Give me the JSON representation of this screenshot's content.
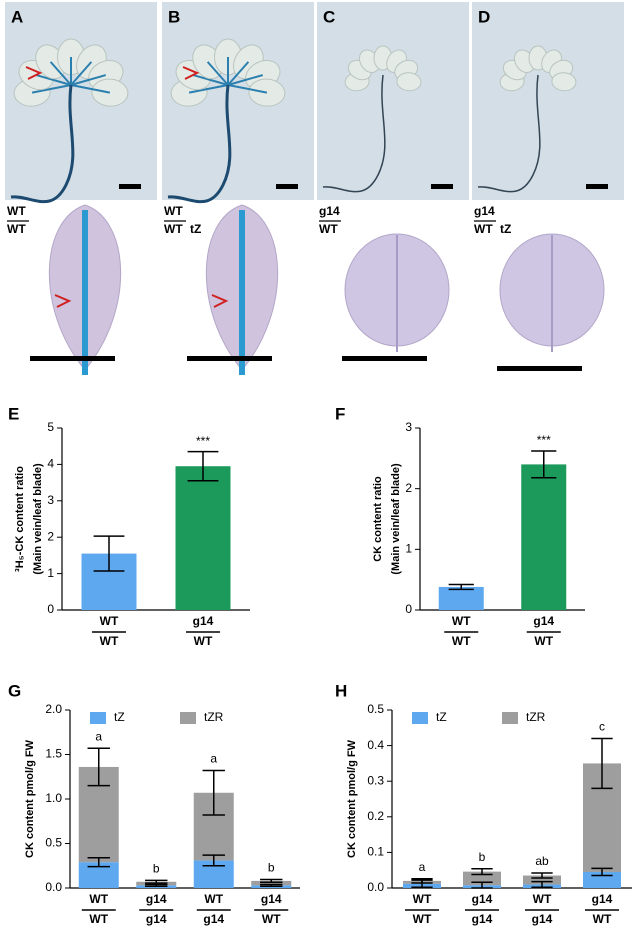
{
  "photo_panels": [
    {
      "label": "A",
      "graft": [
        "WT",
        "WT"
      ]
    },
    {
      "label": "B",
      "graft": [
        "WT",
        "WT"
      ],
      "treatment": "tZ"
    },
    {
      "label": "C",
      "graft": [
        "g14",
        "WT"
      ]
    },
    {
      "label": "D",
      "graft": [
        "g14",
        "WT"
      ],
      "treatment": "tZ"
    }
  ],
  "chart_data": [
    {
      "type": "bar",
      "panel_label": "E",
      "ylabel": [
        "³H₅-CK content ratio",
        "(Main vein/leaf blade)"
      ],
      "categories": [
        [
          "WT",
          "WT"
        ],
        [
          "g14",
          "WT"
        ]
      ],
      "values": [
        1.55,
        3.95
      ],
      "errors": [
        0.48,
        0.4
      ],
      "colors": [
        "#5ea8f0",
        "#1b9a5c"
      ],
      "value_annotations": [
        null,
        "***"
      ],
      "ylim": [
        0,
        5
      ],
      "yticks": [
        0,
        1,
        2,
        3,
        4,
        5
      ]
    },
    {
      "type": "bar",
      "panel_label": "F",
      "ylabel": [
        "CK content ratio",
        "(Main vein/leaf blade)"
      ],
      "categories": [
        [
          "WT",
          "WT"
        ],
        [
          "g14",
          "WT"
        ]
      ],
      "values": [
        0.38,
        2.4
      ],
      "errors": [
        0.04,
        0.22
      ],
      "colors": [
        "#5ea8f0",
        "#1b9a5c"
      ],
      "value_annotations": [
        null,
        "***"
      ],
      "ylim": [
        0,
        3
      ],
      "yticks": [
        0,
        1,
        2,
        3
      ]
    },
    {
      "type": "stacked_bar",
      "panel_label": "G",
      "ylabel": [
        "CK content pmol/g FW"
      ],
      "categories": [
        [
          "WT",
          "WT"
        ],
        [
          "g14",
          "g14"
        ],
        [
          "WT",
          "g14"
        ],
        [
          "g14",
          "WT"
        ]
      ],
      "series": [
        {
          "name": "tZ",
          "color": "#5ea8f0",
          "values": [
            0.29,
            0.03,
            0.31,
            0.03
          ],
          "errors": [
            0.05,
            0.01,
            0.06,
            0.01
          ]
        },
        {
          "name": "tZR",
          "color": "#9e9e9e",
          "values": [
            1.07,
            0.04,
            0.76,
            0.05
          ],
          "errors": [
            0.21,
            0.015,
            0.25,
            0.015
          ]
        }
      ],
      "letters": [
        "a",
        "b",
        "a",
        "b"
      ],
      "ylim": [
        0,
        2
      ],
      "yticks": [
        {
          "value": 0,
          "label": "0.0"
        },
        0.5,
        {
          "value": 1,
          "label": "1.0"
        },
        1.5,
        {
          "value": 2,
          "label": "2.0"
        }
      ]
    },
    {
      "type": "stacked_bar",
      "panel_label": "H",
      "ylabel": [
        "CK content pmol/g FW"
      ],
      "categories": [
        [
          "WT",
          "WT"
        ],
        [
          "g14",
          "g14"
        ],
        [
          "WT",
          "g14"
        ],
        [
          "g14",
          "WT"
        ]
      ],
      "series": [
        {
          "name": "tZ",
          "color": "#5ea8f0",
          "values": [
            0.012,
            0.008,
            0.01,
            0.045
          ],
          "errors": [
            0.01,
            0.008,
            0.008,
            0.01
          ]
        },
        {
          "name": "tZR",
          "color": "#9e9e9e",
          "values": [
            0.008,
            0.038,
            0.025,
            0.305
          ],
          "errors": [
            0.006,
            0.008,
            0.007,
            0.07
          ]
        }
      ],
      "letters": [
        "a",
        "b",
        "ab",
        "c"
      ],
      "ylim": [
        0,
        0.5
      ],
      "yticks": [
        {
          "value": 0,
          "label": "0.0"
        },
        0.1,
        0.2,
        0.3,
        0.4,
        0.5
      ]
    }
  ]
}
